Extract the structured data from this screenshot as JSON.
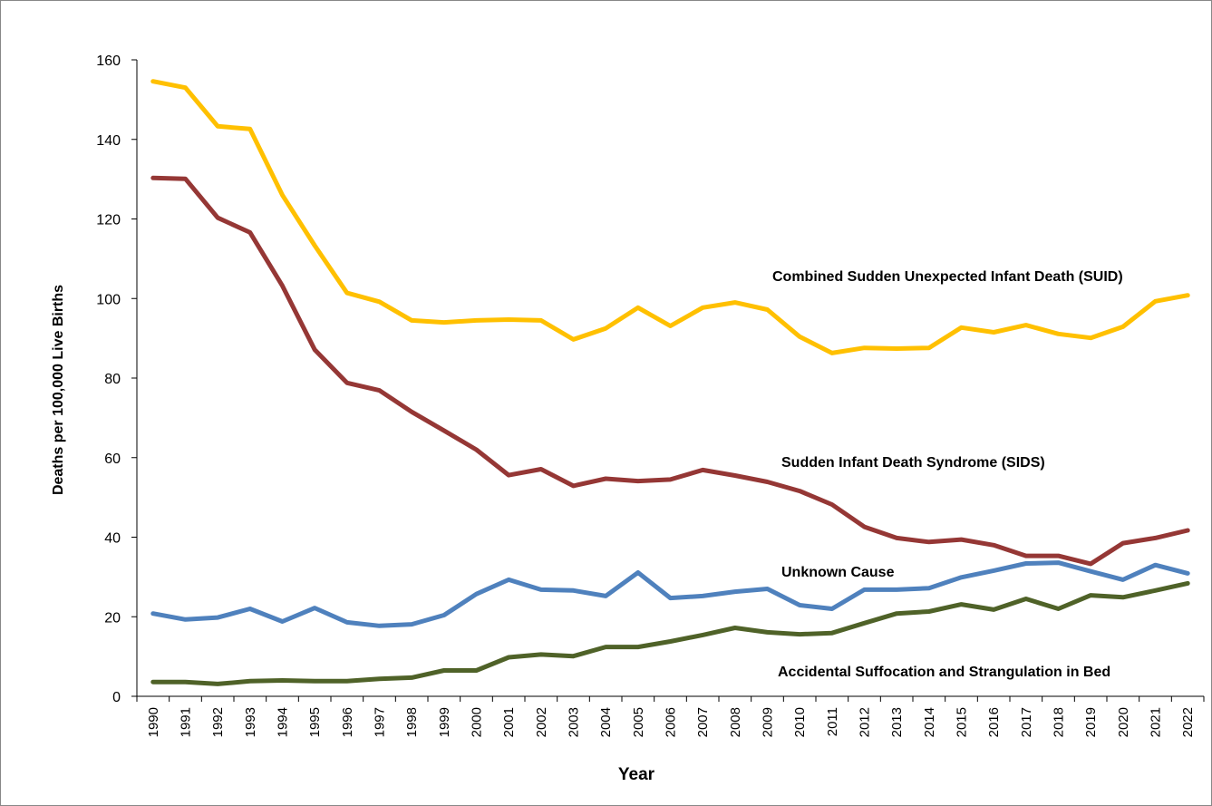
{
  "chart_data": {
    "type": "line",
    "title": "",
    "xlabel": "Year",
    "ylabel": "Deaths per 100,000 Live Births",
    "ylim": [
      0,
      160
    ],
    "yticks": [
      0,
      20,
      40,
      60,
      80,
      100,
      120,
      140,
      160
    ],
    "grid": false,
    "legend": "inline labels",
    "categories": [
      "1990",
      "1991",
      "1992",
      "1993",
      "1994",
      "1995",
      "1996",
      "1997",
      "1998",
      "1999",
      "2000",
      "2001",
      "2002",
      "2003",
      "2004",
      "2005",
      "2006",
      "2007",
      "2008",
      "2009",
      "2010",
      "2011",
      "2012",
      "2013",
      "2014",
      "2015",
      "2016",
      "2017",
      "2018",
      "2019",
      "2020",
      "2021",
      "2022"
    ],
    "series": [
      {
        "name": "Combined Sudden Unexpected Infant Death (SUID)",
        "color": "#FFC000",
        "values": [
          154.6,
          153.0,
          143.3,
          142.6,
          126.0,
          113.3,
          101.4,
          99.2,
          94.5,
          94.0,
          94.5,
          94.7,
          94.5,
          89.7,
          92.5,
          97.7,
          93.1,
          97.7,
          99.0,
          97.2,
          90.4,
          86.3,
          87.6,
          87.4,
          87.6,
          92.7,
          91.5,
          93.3,
          91.1,
          90.1,
          92.9,
          99.3,
          100.8
        ]
      },
      {
        "name": "Sudden Infant Death Syndrome (SIDS)",
        "color": "#953735",
        "values": [
          130.3,
          130.1,
          120.3,
          116.6,
          103.2,
          87.1,
          78.8,
          76.9,
          71.5,
          66.8,
          62.0,
          55.6,
          57.1,
          52.9,
          54.7,
          54.1,
          54.5,
          56.9,
          55.5,
          53.9,
          51.6,
          48.2,
          42.6,
          39.8,
          38.8,
          39.4,
          38.0,
          35.3,
          35.3,
          33.3,
          38.5,
          39.8,
          41.7
        ]
      },
      {
        "name": "Unknown Cause",
        "color": "#4F81BD",
        "values": [
          20.8,
          19.3,
          19.8,
          22.0,
          18.8,
          22.2,
          18.6,
          17.7,
          18.1,
          20.4,
          25.7,
          29.3,
          26.8,
          26.6,
          25.2,
          31.1,
          24.7,
          25.2,
          26.3,
          27.0,
          22.9,
          22.0,
          26.8,
          26.8,
          27.2,
          29.9,
          31.6,
          33.4,
          33.6,
          31.4,
          29.3,
          33.0,
          30.9
        ]
      },
      {
        "name": "Accidental Suffocation and Strangulation in Bed",
        "color": "#4F6228",
        "values": [
          3.6,
          3.6,
          3.1,
          3.8,
          4.0,
          3.8,
          3.8,
          4.4,
          4.7,
          6.5,
          6.5,
          9.8,
          10.5,
          10.1,
          12.4,
          12.4,
          13.8,
          15.4,
          17.2,
          16.1,
          15.6,
          15.9,
          18.4,
          20.8,
          21.3,
          23.1,
          21.8,
          24.5,
          22.0,
          25.4,
          24.9,
          26.6,
          28.4
        ]
      }
    ]
  }
}
